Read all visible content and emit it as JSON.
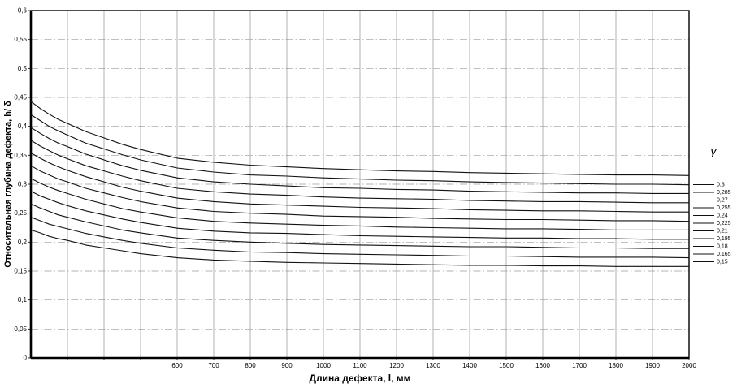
{
  "chart_data": {
    "type": "line",
    "title": "",
    "xlabel": "Длина дефекта, l, мм",
    "ylabel": "Относительная глубина дефекта, h/ δ",
    "legend_title": "γ",
    "legend_position": "right",
    "x_range": [
      200,
      2000
    ],
    "y_range": [
      0,
      0.6
    ],
    "x_grid_step": 100,
    "y_grid_step": 0.05,
    "x_ticks_labeled": [
      600,
      700,
      800,
      900,
      1000,
      1100,
      1200,
      1300,
      1400,
      1500,
      1600,
      1700,
      1800,
      1900,
      2000
    ],
    "x_tick_labels": [
      "600",
      "700",
      "800",
      "900",
      "1000",
      "1100",
      "1200",
      "1300",
      "1400",
      "1500",
      "1600",
      "1700",
      "1800",
      "1900",
      "2000"
    ],
    "y_ticks": [
      0,
      0.05,
      0.1,
      0.15,
      0.2,
      0.25,
      0.3,
      0.35,
      0.4,
      0.45,
      0.5,
      0.55,
      0.6
    ],
    "y_tick_labels": [
      "0",
      "0,05",
      "0,1",
      "0,15",
      "0,2",
      "0,25",
      "0,3",
      "0,35",
      "0,4",
      "0,45",
      "0,5",
      "0,55",
      "0,6"
    ],
    "grid": true,
    "colors": {
      "curve": "#111111",
      "grid_horizontal": "#9a9a9a",
      "grid_vertical": "#8f8f8f",
      "frame": "#000000",
      "text": "#000000"
    },
    "x": [
      200,
      225,
      250,
      275,
      300,
      350,
      400,
      450,
      500,
      600,
      700,
      800,
      900,
      1000,
      1100,
      1200,
      1300,
      1400,
      1500,
      1600,
      1700,
      1800,
      1900,
      2000
    ],
    "series": [
      {
        "name": "0,3",
        "gamma": 0.3,
        "values": [
          0.443,
          0.431,
          0.421,
          0.412,
          0.405,
          0.391,
          0.38,
          0.369,
          0.36,
          0.345,
          0.338,
          0.333,
          0.33,
          0.327,
          0.325,
          0.323,
          0.322,
          0.32,
          0.319,
          0.318,
          0.317,
          0.316,
          0.316,
          0.315
        ]
      },
      {
        "name": "0,285",
        "gamma": 0.285,
        "values": [
          0.42,
          0.41,
          0.4,
          0.392,
          0.385,
          0.371,
          0.361,
          0.351,
          0.342,
          0.328,
          0.321,
          0.316,
          0.314,
          0.311,
          0.309,
          0.307,
          0.306,
          0.304,
          0.303,
          0.302,
          0.301,
          0.3,
          0.3,
          0.299
        ]
      },
      {
        "name": "0,27",
        "gamma": 0.27,
        "values": [
          0.398,
          0.388,
          0.379,
          0.371,
          0.365,
          0.352,
          0.342,
          0.332,
          0.324,
          0.311,
          0.304,
          0.3,
          0.297,
          0.294,
          0.293,
          0.291,
          0.29,
          0.288,
          0.287,
          0.286,
          0.285,
          0.285,
          0.284,
          0.284
        ]
      },
      {
        "name": "0,255",
        "gamma": 0.255,
        "values": [
          0.376,
          0.366,
          0.358,
          0.35,
          0.344,
          0.332,
          0.323,
          0.314,
          0.306,
          0.293,
          0.287,
          0.283,
          0.281,
          0.278,
          0.276,
          0.275,
          0.274,
          0.272,
          0.271,
          0.27,
          0.27,
          0.269,
          0.268,
          0.268
        ]
      },
      {
        "name": "0,24",
        "gamma": 0.24,
        "values": [
          0.354,
          0.345,
          0.337,
          0.33,
          0.324,
          0.313,
          0.304,
          0.295,
          0.288,
          0.276,
          0.27,
          0.266,
          0.264,
          0.262,
          0.26,
          0.259,
          0.258,
          0.256,
          0.255,
          0.254,
          0.254,
          0.253,
          0.252,
          0.252
        ]
      },
      {
        "name": "0,225",
        "gamma": 0.225,
        "values": [
          0.332,
          0.323,
          0.316,
          0.309,
          0.304,
          0.293,
          0.285,
          0.277,
          0.27,
          0.259,
          0.253,
          0.25,
          0.248,
          0.245,
          0.244,
          0.243,
          0.241,
          0.24,
          0.239,
          0.239,
          0.238,
          0.237,
          0.237,
          0.236
        ]
      },
      {
        "name": "0,21",
        "gamma": 0.21,
        "values": [
          0.31,
          0.302,
          0.295,
          0.289,
          0.284,
          0.274,
          0.266,
          0.258,
          0.252,
          0.242,
          0.236,
          0.233,
          0.231,
          0.229,
          0.228,
          0.226,
          0.225,
          0.224,
          0.223,
          0.223,
          0.222,
          0.221,
          0.221,
          0.221
        ]
      },
      {
        "name": "0,195",
        "gamma": 0.195,
        "values": [
          0.288,
          0.28,
          0.274,
          0.268,
          0.263,
          0.254,
          0.247,
          0.24,
          0.234,
          0.224,
          0.219,
          0.216,
          0.215,
          0.213,
          0.211,
          0.21,
          0.209,
          0.208,
          0.207,
          0.207,
          0.206,
          0.206,
          0.205,
          0.205
        ]
      },
      {
        "name": "0,18",
        "gamma": 0.18,
        "values": [
          0.266,
          0.259,
          0.253,
          0.247,
          0.243,
          0.235,
          0.228,
          0.221,
          0.216,
          0.207,
          0.203,
          0.2,
          0.198,
          0.196,
          0.195,
          0.194,
          0.193,
          0.192,
          0.192,
          0.191,
          0.19,
          0.19,
          0.189,
          0.189
        ]
      },
      {
        "name": "0,165",
        "gamma": 0.165,
        "values": [
          0.243,
          0.237,
          0.231,
          0.227,
          0.223,
          0.215,
          0.209,
          0.203,
          0.198,
          0.19,
          0.186,
          0.183,
          0.182,
          0.18,
          0.179,
          0.178,
          0.177,
          0.176,
          0.176,
          0.175,
          0.174,
          0.174,
          0.174,
          0.173
        ]
      },
      {
        "name": "0,15",
        "gamma": 0.15,
        "values": [
          0.221,
          0.216,
          0.21,
          0.206,
          0.203,
          0.195,
          0.19,
          0.185,
          0.18,
          0.173,
          0.169,
          0.167,
          0.165,
          0.164,
          0.163,
          0.162,
          0.161,
          0.16,
          0.16,
          0.159,
          0.159,
          0.158,
          0.158,
          0.158
        ]
      }
    ]
  }
}
